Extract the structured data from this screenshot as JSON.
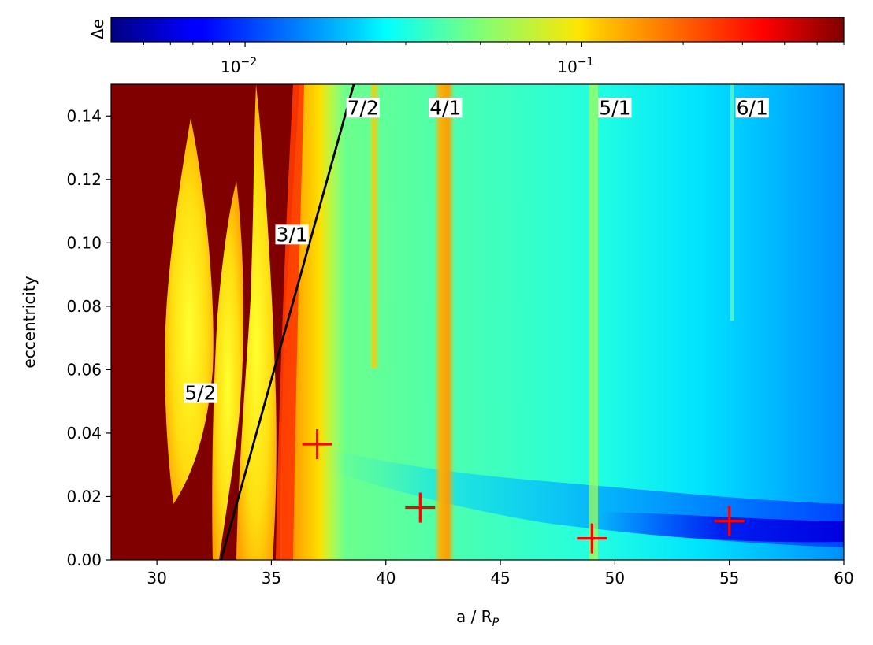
{
  "chart_data": {
    "type": "heatmap",
    "xlabel": "a / R",
    "xlabel_sub": "P",
    "ylabel": "eccentricity",
    "xlim": [
      28,
      60
    ],
    "ylim": [
      0,
      0.15
    ],
    "x_ticks": [
      "30",
      "35",
      "40",
      "45",
      "50",
      "55",
      "60"
    ],
    "y_ticks": [
      "0.00",
      "0.02",
      "0.04",
      "0.06",
      "0.08",
      "0.10",
      "0.12",
      "0.14"
    ],
    "colorbar": {
      "label": "Δe",
      "scale": "log",
      "colormap": "jet",
      "range": [
        0.004,
        0.6
      ],
      "major_ticks": [
        {
          "value": 0.01,
          "base": "10",
          "exp": "−2"
        },
        {
          "value": 0.1,
          "base": "10",
          "exp": "−1"
        }
      ],
      "minor_ticks": [
        0.005,
        0.006,
        0.007,
        0.008,
        0.009,
        0.02,
        0.03,
        0.04,
        0.05,
        0.06,
        0.07,
        0.08,
        0.09,
        0.2,
        0.3,
        0.4,
        0.5,
        0.6
      ]
    },
    "resonance_labels": [
      {
        "text": "7/2",
        "x": 39.0,
        "y": 0.1405
      },
      {
        "text": "4/1",
        "x": 42.6,
        "y": 0.1405
      },
      {
        "text": "5/1",
        "x": 50.0,
        "y": 0.1405
      },
      {
        "text": "6/1",
        "x": 56.0,
        "y": 0.1405
      },
      {
        "text": "3/1",
        "x": 35.9,
        "y": 0.1005
      },
      {
        "text": "5/2",
        "x": 31.9,
        "y": 0.0505
      }
    ],
    "line_3_1": {
      "color": "#000000",
      "points": [
        [
          32.8,
          0.0
        ],
        [
          38.6,
          0.15
        ]
      ]
    },
    "markers": {
      "symbol": "+",
      "color": "#ff0000",
      "points": [
        {
          "x": 37.0,
          "y": 0.0365
        },
        {
          "x": 41.5,
          "y": 0.0165
        },
        {
          "x": 49.0,
          "y": 0.0068
        },
        {
          "x": 55.0,
          "y": 0.0123
        }
      ]
    }
  }
}
